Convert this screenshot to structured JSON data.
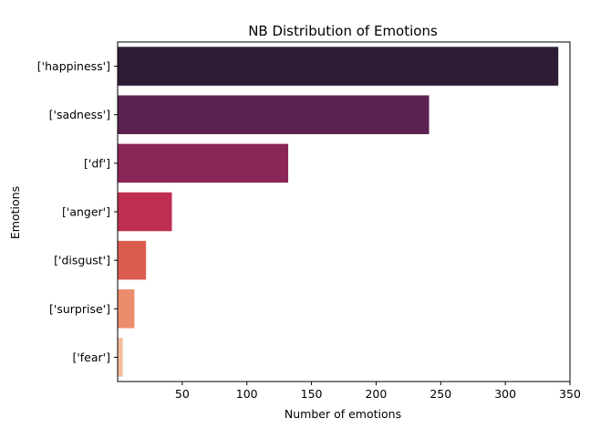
{
  "chart_data": {
    "type": "bar",
    "orientation": "horizontal",
    "title": "NB Distribution of Emotions",
    "xlabel": "Number of emotions",
    "ylabel": "Emotions",
    "categories": [
      "['happiness']",
      "['sadness']",
      "['df']",
      "['anger']",
      "['disgust']",
      "['surprise']",
      "['fear']"
    ],
    "values": [
      341,
      241,
      132,
      42,
      22,
      13,
      4
    ],
    "xlim": [
      0,
      350
    ],
    "xticks": [
      50,
      100,
      150,
      200,
      250,
      300,
      350
    ],
    "colors": [
      "#2e1c36",
      "#5a2250",
      "#8b2757",
      "#bf2f52",
      "#dd5c50",
      "#eb8d6d",
      "#f4bf9d"
    ],
    "grid": false,
    "legend": "none"
  }
}
